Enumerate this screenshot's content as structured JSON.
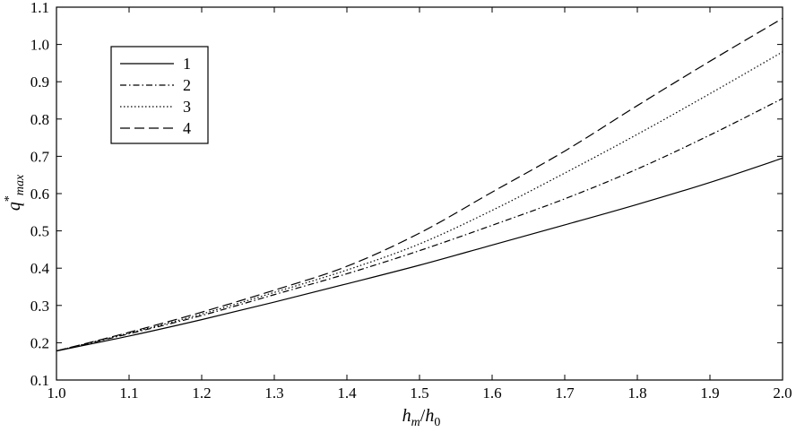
{
  "chart_data": {
    "type": "line",
    "xlabel": {
      "base": "h",
      "sub": "m",
      "sep": "/",
      "base2": "h",
      "sub2": "0"
    },
    "ylabel": {
      "base": "q",
      "sup": "*",
      "sub": "max"
    },
    "xlim": [
      1.0,
      2.0
    ],
    "ylim": [
      0.1,
      1.1
    ],
    "x_ticks": [
      1.0,
      1.1,
      1.2,
      1.3,
      1.4,
      1.5,
      1.6,
      1.7,
      1.8,
      1.9,
      2.0
    ],
    "y_ticks": [
      0.1,
      0.2,
      0.3,
      0.4,
      0.5,
      0.6,
      0.7,
      0.8,
      0.9,
      1.0,
      1.1
    ],
    "grid": false,
    "legend_position": "top-left",
    "series": [
      {
        "name": "1",
        "dash": "solid",
        "x": [
          1.0,
          1.1,
          1.2,
          1.3,
          1.4,
          1.5,
          1.6,
          1.7,
          1.8,
          1.9,
          2.0
        ],
        "y": [
          0.178,
          0.218,
          0.262,
          0.309,
          0.358,
          0.408,
          0.462,
          0.516,
          0.571,
          0.63,
          0.695
        ]
      },
      {
        "name": "2",
        "dash": "dashdot",
        "x": [
          1.0,
          1.1,
          1.2,
          1.3,
          1.4,
          1.5,
          1.6,
          1.7,
          1.8,
          1.9,
          2.0
        ],
        "y": [
          0.178,
          0.224,
          0.273,
          0.329,
          0.385,
          0.447,
          0.515,
          0.586,
          0.666,
          0.757,
          0.855
        ]
      },
      {
        "name": "3",
        "dash": "dotted",
        "x": [
          1.0,
          1.1,
          1.2,
          1.3,
          1.4,
          1.5,
          1.6,
          1.7,
          1.8,
          1.9,
          2.0
        ],
        "y": [
          0.178,
          0.226,
          0.277,
          0.335,
          0.395,
          0.465,
          0.555,
          0.655,
          0.759,
          0.868,
          0.98
        ]
      },
      {
        "name": "4",
        "dash": "dashed",
        "x": [
          1.0,
          1.1,
          1.2,
          1.3,
          1.4,
          1.5,
          1.6,
          1.7,
          1.8,
          1.9,
          2.0
        ],
        "y": [
          0.178,
          0.228,
          0.282,
          0.341,
          0.405,
          0.494,
          0.604,
          0.714,
          0.836,
          0.955,
          1.07
        ]
      }
    ]
  }
}
